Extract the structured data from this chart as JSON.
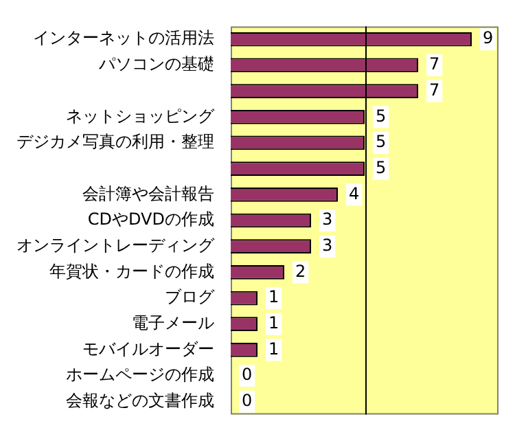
{
  "chart_data": {
    "type": "bar",
    "orientation": "horizontal",
    "categories": [
      "インターネットの活用法",
      "パソコンの基礎",
      null,
      "ネットショッピング",
      "デジカメ写真の利用・整理",
      null,
      "会計簿や会計報告",
      "CDやDVDの作成",
      "オンライントレーディング",
      "年賀状・カードの作成",
      "ブログ",
      "電子メール",
      "モバイルオーダー",
      "ホームページの作成",
      "会報などの文書作成"
    ],
    "values": [
      9,
      7,
      7,
      5,
      5,
      5,
      4,
      3,
      3,
      2,
      1,
      1,
      1,
      0,
      0
    ],
    "color": "#993366",
    "data_labels": true,
    "xlim": [
      0,
      10
    ],
    "tick_labels": "y",
    "grid": false,
    "legend": false,
    "ref_lines": [
      {
        "axis": "x",
        "value": 5,
        "color": "#000000"
      }
    ]
  }
}
